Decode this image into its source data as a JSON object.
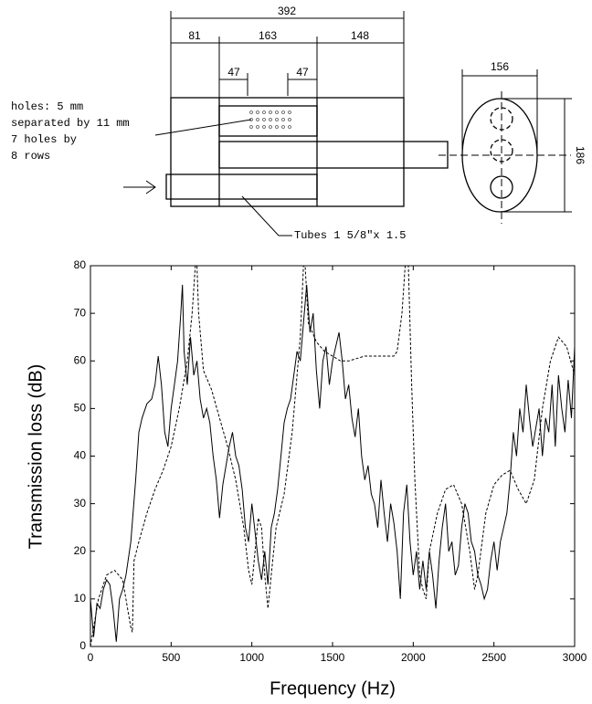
{
  "diagram": {
    "dimensions": [
      "392",
      "81",
      "163",
      "148",
      "47",
      "47",
      "156",
      "186"
    ],
    "note": [
      "holes: 5 mm",
      "separated by 11 mm",
      "7 holes by",
      "8 rows"
    ],
    "tubes": "Tubes 1 5/8\"x 1.5"
  },
  "chart_data": {
    "type": "line",
    "xlabel": "Frequency (Hz)",
    "ylabel": "Transmission loss (dB)",
    "xlim": [
      0,
      3000
    ],
    "ylim": [
      0,
      80
    ],
    "xticks": [
      0,
      500,
      1000,
      1500,
      2000,
      2500,
      3000
    ],
    "yticks": [
      0,
      10,
      20,
      30,
      40,
      50,
      60,
      70,
      80
    ],
    "grid": false,
    "series": [
      {
        "color": "#000000",
        "dash": "solid",
        "x": [
          0,
          20,
          40,
          60,
          80,
          100,
          120,
          140,
          160,
          180,
          200,
          220,
          250,
          280,
          300,
          320,
          350,
          380,
          400,
          420,
          440,
          460,
          480,
          500,
          520,
          540,
          560,
          570,
          580,
          600,
          620,
          640,
          660,
          680,
          700,
          720,
          740,
          760,
          780,
          800,
          820,
          840,
          860,
          880,
          900,
          920,
          940,
          960,
          980,
          1000,
          1020,
          1040,
          1060,
          1080,
          1100,
          1120,
          1140,
          1160,
          1180,
          1200,
          1220,
          1240,
          1260,
          1280,
          1300,
          1320,
          1340,
          1360,
          1380,
          1400,
          1420,
          1440,
          1460,
          1480,
          1500,
          1520,
          1540,
          1560,
          1580,
          1600,
          1620,
          1640,
          1660,
          1680,
          1700,
          1720,
          1740,
          1760,
          1780,
          1800,
          1820,
          1840,
          1860,
          1880,
          1900,
          1920,
          1940,
          1960,
          1980,
          2000,
          2020,
          2040,
          2060,
          2080,
          2100,
          2120,
          2140,
          2160,
          2180,
          2200,
          2220,
          2240,
          2260,
          2280,
          2300,
          2320,
          2340,
          2360,
          2380,
          2400,
          2420,
          2440,
          2460,
          2480,
          2500,
          2520,
          2540,
          2560,
          2580,
          2600,
          2620,
          2640,
          2660,
          2680,
          2700,
          2720,
          2740,
          2760,
          2780,
          2800,
          2820,
          2840,
          2860,
          2880,
          2900,
          2920,
          2940,
          2960,
          2980,
          3000
        ],
        "values": [
          10,
          2,
          9,
          8,
          12,
          14,
          13,
          8,
          1,
          10,
          12,
          15,
          22,
          35,
          45,
          48,
          51,
          52,
          55,
          61,
          55,
          45,
          42,
          50,
          55,
          60,
          70,
          76,
          62,
          55,
          65,
          57,
          60,
          52,
          48,
          50,
          47,
          40,
          35,
          27,
          34,
          38,
          42,
          45,
          40,
          38,
          33,
          25,
          22,
          30,
          24,
          18,
          14,
          20,
          13,
          25,
          28,
          33,
          40,
          47,
          50,
          52,
          57,
          62,
          60,
          68,
          76,
          66,
          70,
          58,
          50,
          60,
          63,
          55,
          60,
          63,
          66,
          60,
          52,
          55,
          48,
          44,
          50,
          40,
          35,
          38,
          32,
          30,
          25,
          35,
          28,
          22,
          30,
          26,
          20,
          10,
          28,
          34,
          22,
          15,
          20,
          12,
          18,
          12,
          20,
          15,
          8,
          18,
          25,
          30,
          20,
          22,
          15,
          17,
          25,
          30,
          28,
          22,
          20,
          15,
          13,
          10,
          12,
          18,
          22,
          16,
          22,
          25,
          28,
          35,
          45,
          40,
          50,
          45,
          55,
          48,
          42,
          46,
          50,
          40,
          48,
          45,
          55,
          42,
          57,
          50,
          45,
          56,
          48,
          63
        ]
      },
      {
        "color": "#000000",
        "dash": "dashed",
        "x": [
          0,
          50,
          100,
          150,
          200,
          230,
          250,
          260,
          270,
          300,
          350,
          400,
          450,
          500,
          550,
          600,
          630,
          650,
          660,
          670,
          700,
          750,
          800,
          850,
          900,
          950,
          980,
          1000,
          1020,
          1040,
          1060,
          1080,
          1100,
          1120,
          1150,
          1200,
          1250,
          1300,
          1320,
          1330,
          1350,
          1400,
          1450,
          1500,
          1550,
          1600,
          1700,
          1800,
          1880,
          1900,
          1930,
          1950,
          1970,
          1990,
          2010,
          2040,
          2060,
          2080,
          2100,
          2150,
          2200,
          2250,
          2300,
          2350,
          2380,
          2400,
          2450,
          2500,
          2550,
          2600,
          2650,
          2700,
          2750,
          2800,
          2850,
          2900,
          2950,
          3000
        ],
        "values": [
          0,
          10,
          15,
          16,
          14,
          8,
          4,
          3,
          18,
          22,
          28,
          33,
          37,
          42,
          50,
          60,
          70,
          80,
          80,
          70,
          58,
          54,
          48,
          42,
          35,
          25,
          16,
          13,
          20,
          27,
          25,
          15,
          8,
          15,
          25,
          32,
          45,
          65,
          80,
          80,
          68,
          64,
          62,
          61,
          60,
          60,
          61,
          61,
          61,
          62,
          70,
          80,
          80,
          55,
          35,
          15,
          12,
          10,
          20,
          28,
          33,
          34,
          30,
          20,
          12,
          15,
          28,
          34,
          36,
          37,
          33,
          30,
          35,
          50,
          60,
          65,
          63,
          57
        ]
      }
    ]
  }
}
